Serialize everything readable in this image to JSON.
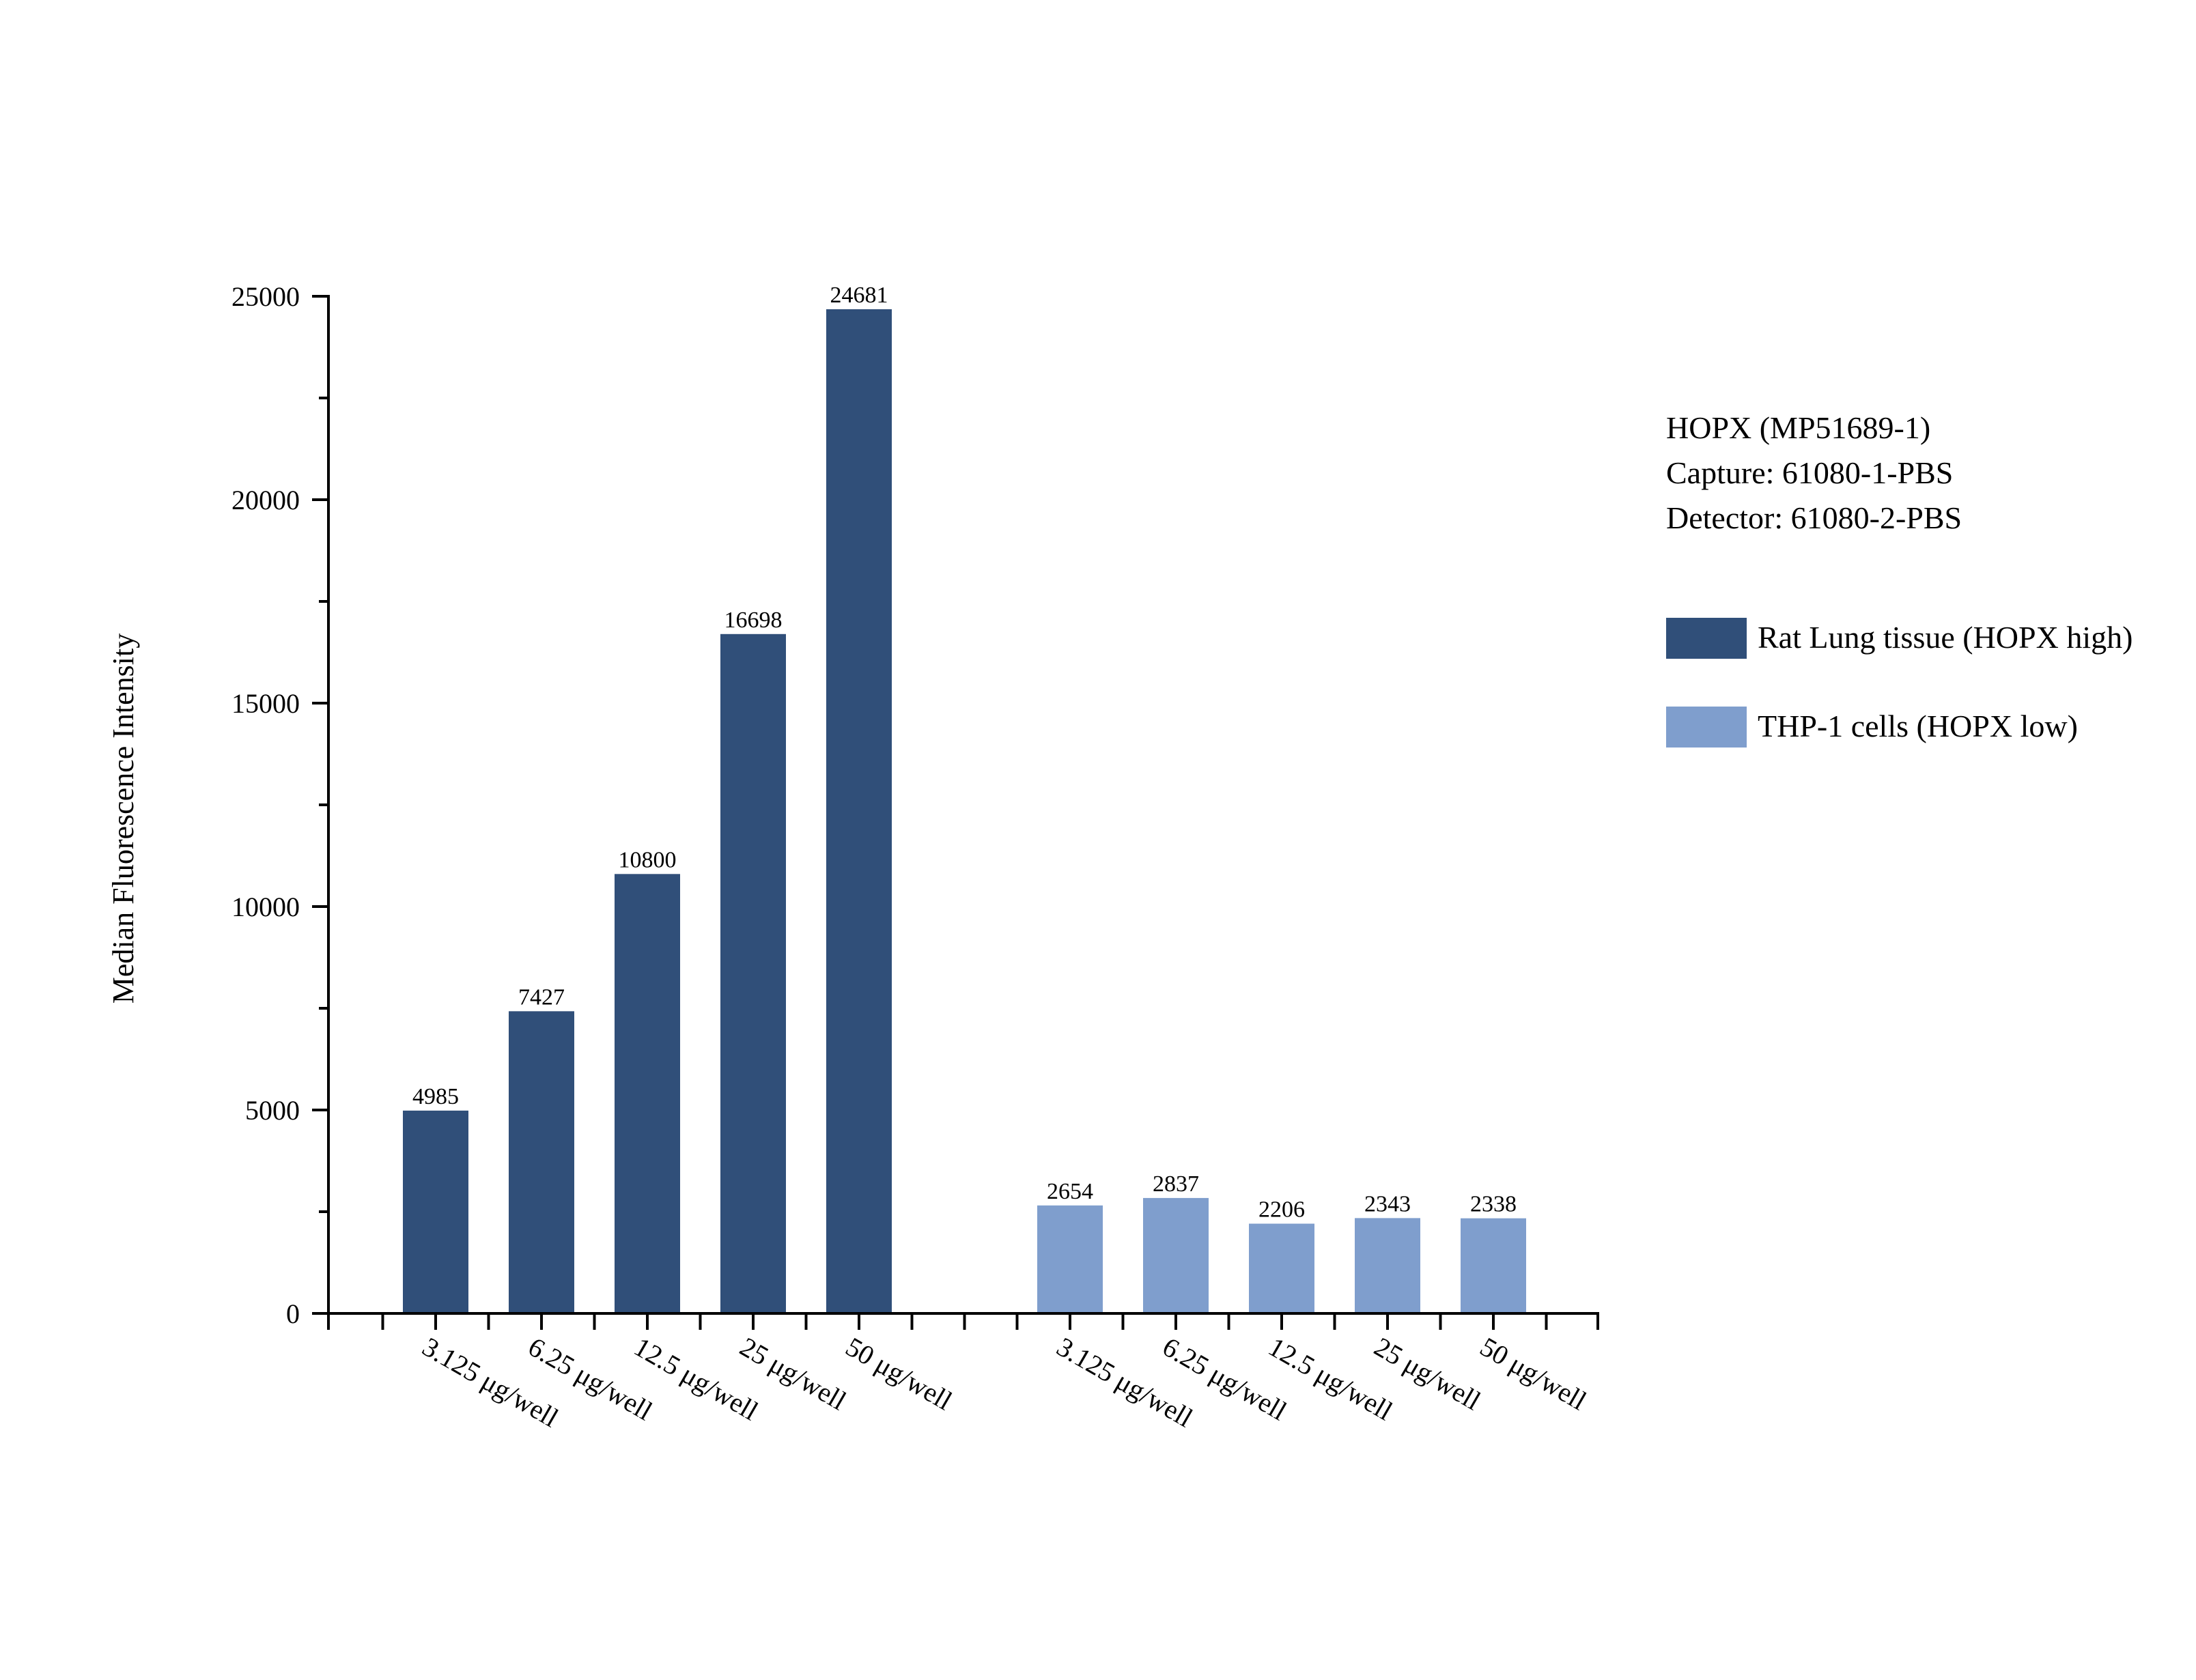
{
  "chart_data": {
    "type": "bar",
    "xlabel": "",
    "ylabel": "Median Fluorescence Intensity",
    "ylim": [
      0,
      25000
    ],
    "yticks": [
      0,
      5000,
      10000,
      15000,
      20000,
      25000
    ],
    "grid": false,
    "legend_position": "right",
    "annotation_lines": [
      "HOPX (MP51689-1)",
      "Capture: 61080-1-PBS",
      "Detector: 61080-2-PBS"
    ],
    "series": [
      {
        "name": "Rat Lung tissue (HOPX high)",
        "color": "#304f79",
        "categories": [
          "3.125 μg/well",
          "6.25 μg/well",
          "12.5 μg/well",
          "25 μg/well",
          "50 μg/well"
        ],
        "values": [
          4985,
          7427,
          10800,
          16698,
          24681
        ]
      },
      {
        "name": "THP-1 cells (HOPX low)",
        "color": "#7f9ecd",
        "categories": [
          "3.125 μg/well",
          "6.25 μg/well",
          "12.5 μg/well",
          "25 μg/well",
          "50 μg/well"
        ],
        "values": [
          2654,
          2837,
          2206,
          2343,
          2338
        ]
      }
    ]
  }
}
